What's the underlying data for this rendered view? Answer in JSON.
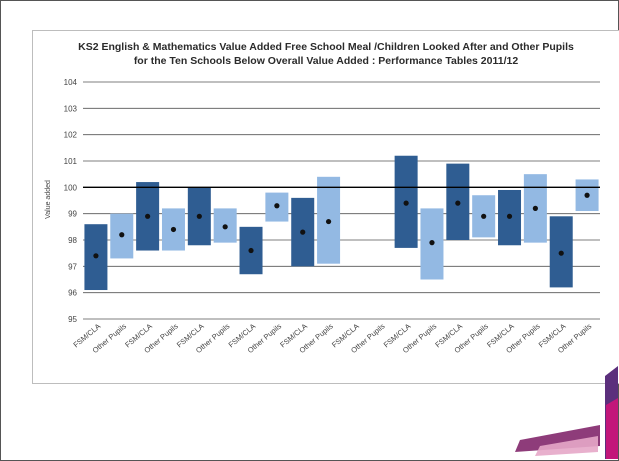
{
  "chart_data": {
    "type": "floating-bar",
    "title": [
      "KS2 English & Mathematics Value Added Free School Meal /Children Looked After and Other Pupils",
      "for the Ten Schools Below Overall Value Added : Performance Tables 2011/12"
    ],
    "ylabel": "Value added",
    "xlabel": "",
    "ylim": [
      95,
      104
    ],
    "yticks": [
      "95",
      "96",
      "97",
      "98",
      "99",
      "100",
      "101",
      "102",
      "103",
      "104"
    ],
    "reference_line": 100,
    "grid": true,
    "categories": [
      "FSM/CLA",
      "Other Pupils",
      "FSM/CLA",
      "Other Pupils",
      "FSM/CLA",
      "Other Pupils",
      "FSM/CLA",
      "Other Pupils",
      "FSM/CLA",
      "Other Pupils",
      "FSM/CLA",
      "Other Pupils",
      "FSM/CLA",
      "Other Pupils",
      "FSM/CLA",
      "Other Pupils",
      "FSM/CLA",
      "Other Pupils",
      "FSM/CLA",
      "Other Pupils"
    ],
    "bars": [
      {
        "low": 96.1,
        "high": 98.6,
        "point": 97.4
      },
      {
        "low": 97.3,
        "high": 99.0,
        "point": 98.2
      },
      {
        "low": 97.6,
        "high": 100.2,
        "point": 98.9
      },
      {
        "low": 97.6,
        "high": 99.2,
        "point": 98.4
      },
      {
        "low": 97.8,
        "high": 100.0,
        "point": 98.9
      },
      {
        "low": 97.9,
        "high": 99.2,
        "point": 98.5
      },
      {
        "low": 96.7,
        "high": 98.5,
        "point": 97.6
      },
      {
        "low": 98.7,
        "high": 99.8,
        "point": 99.3
      },
      {
        "low": 97.0,
        "high": 99.6,
        "point": 98.3
      },
      {
        "low": 97.1,
        "high": 100.4,
        "point": 98.7
      },
      null,
      null,
      {
        "low": 97.7,
        "high": 101.2,
        "point": 99.4
      },
      {
        "low": 96.5,
        "high": 99.2,
        "point": 97.9
      },
      {
        "low": 98.0,
        "high": 100.9,
        "point": 99.4
      },
      {
        "low": 98.1,
        "high": 99.7,
        "point": 98.9
      },
      {
        "low": 97.8,
        "high": 99.9,
        "point": 98.9
      },
      {
        "low": 97.9,
        "high": 100.5,
        "point": 99.2
      },
      {
        "low": 96.2,
        "high": 98.9,
        "point": 97.5
      },
      {
        "low": 99.1,
        "high": 100.3,
        "point": 99.7
      }
    ],
    "colors": {
      "fsm": "#2f5d92",
      "other": "#93b9e3",
      "point": "#111111",
      "grid": "#555555",
      "reference": "#000000",
      "tick_text": "#444444"
    }
  },
  "decor": {
    "corner_colors": [
      "#7a1a63",
      "#c2167a",
      "#5b2f7c",
      "#e5a7c8"
    ]
  }
}
